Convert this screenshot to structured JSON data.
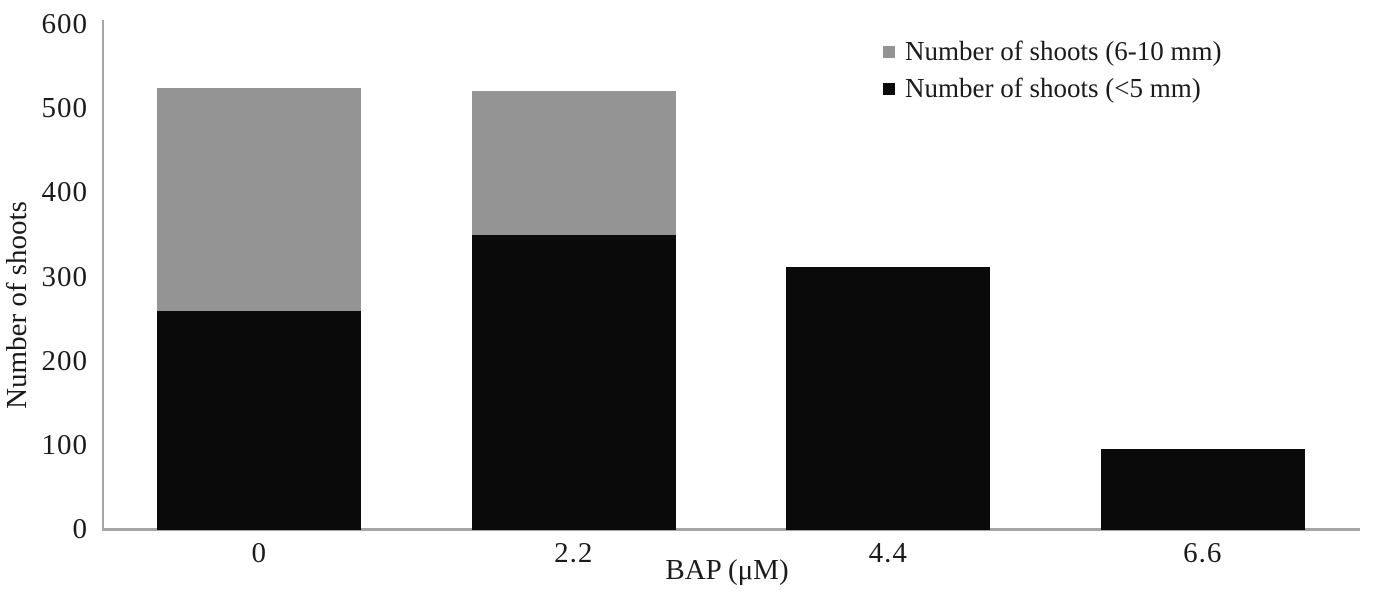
{
  "chart_data": {
    "type": "bar",
    "stacked": true,
    "title": "",
    "xlabel": "BAP (μM)",
    "ylabel": "Number of shoots",
    "categories": [
      "0",
      "2.2",
      "4.4",
      "6.6"
    ],
    "series": [
      {
        "name": "Number of shoots (6-10 mm)",
        "color": "#949494",
        "values": [
          265,
          172,
          0,
          0
        ]
      },
      {
        "name": "Number of shoots (<5 mm)",
        "color": "#0a0a0a",
        "values": [
          260,
          350,
          312,
          96
        ]
      }
    ],
    "stack_order_bottom_to_top": [
      "Number of shoots (<5 mm)",
      "Number of shoots (6-10 mm)"
    ],
    "stack_totals": [
      525,
      522,
      312,
      96
    ],
    "ylim": [
      0,
      600
    ],
    "yticks": [
      0,
      100,
      200,
      300,
      400,
      500,
      600
    ],
    "grid": false,
    "legend_position": "top-right",
    "axis_line_color": "#a6a6a6",
    "text_color": "#1b1b1b",
    "background_color": "#ffffff"
  }
}
